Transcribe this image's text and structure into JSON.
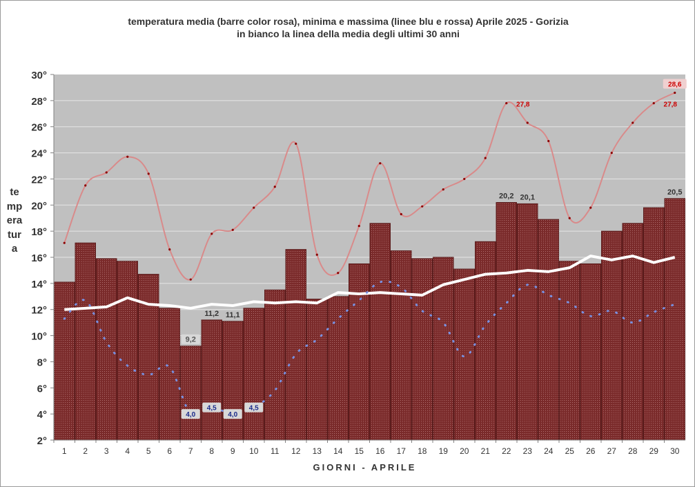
{
  "title_line1": "temperatura media (barre color rosa), minima e massima (linee blu e rossa) Aprile 2025 - Gorizia",
  "title_line2": "in bianco la linea della media degli ultimi 30 anni",
  "ylabel": "temperatura",
  "xlabel": "GIORNI - APRILE",
  "colors": {
    "plot_bg": "#c0c0c0",
    "bar": "#7a2a2a",
    "max_line": "#d98a8a",
    "min_line": "#7890e0",
    "avg30_line": "#ffffff"
  },
  "chart_data": {
    "type": "bar",
    "ylim": [
      2,
      30
    ],
    "yticks": [
      "2°",
      "4°",
      "6°",
      "8°",
      "10°",
      "12°",
      "14°",
      "16°",
      "18°",
      "20°",
      "22°",
      "24°",
      "26°",
      "28°",
      "30°"
    ],
    "grid": true,
    "categories": [
      "1",
      "2",
      "3",
      "4",
      "5",
      "6",
      "7",
      "8",
      "9",
      "10",
      "11",
      "12",
      "13",
      "14",
      "15",
      "16",
      "17",
      "18",
      "19",
      "20",
      "21",
      "22",
      "23",
      "24",
      "25",
      "26",
      "27",
      "28",
      "29",
      "30"
    ],
    "series": [
      {
        "name": "temperatura media",
        "kind": "bar",
        "values": [
          14.1,
          17.1,
          15.9,
          15.7,
          14.7,
          12.1,
          9.2,
          11.2,
          11.1,
          12.1,
          13.5,
          16.6,
          12.8,
          13.0,
          15.5,
          18.6,
          16.5,
          15.9,
          16.0,
          15.1,
          17.2,
          20.2,
          20.1,
          18.9,
          15.7,
          15.5,
          18.0,
          18.6,
          19.8,
          20.5
        ]
      },
      {
        "name": "massima",
        "kind": "line",
        "values": [
          17.1,
          21.5,
          22.5,
          23.7,
          22.4,
          16.6,
          14.3,
          17.8,
          18.1,
          19.8,
          21.4,
          24.7,
          16.2,
          14.8,
          18.4,
          23.2,
          19.3,
          19.9,
          21.2,
          22.0,
          23.6,
          27.8,
          26.3,
          24.9,
          19.0,
          19.8,
          24.0,
          26.3,
          27.8,
          28.6
        ]
      },
      {
        "name": "minima",
        "kind": "line",
        "values": [
          11.3,
          12.7,
          9.5,
          7.7,
          7.0,
          7.6,
          4.0,
          4.5,
          4.0,
          4.5,
          5.8,
          8.6,
          9.7,
          11.3,
          12.7,
          14.1,
          13.7,
          11.9,
          11.0,
          8.4,
          10.8,
          12.5,
          13.9,
          13.1,
          12.5,
          11.5,
          11.9,
          11.0,
          11.8,
          12.4
        ]
      },
      {
        "name": "media degli ultimi 30 anni",
        "kind": "line",
        "values": [
          12.0,
          12.1,
          12.2,
          12.9,
          12.4,
          12.3,
          12.1,
          12.4,
          12.3,
          12.6,
          12.5,
          12.6,
          12.5,
          13.3,
          13.2,
          13.3,
          13.2,
          13.1,
          13.9,
          14.3,
          14.7,
          14.8,
          15.0,
          14.9,
          15.2,
          16.1,
          15.8,
          16.1,
          15.6,
          16.0
        ]
      }
    ],
    "data_labels": [
      {
        "series": "temperatura media",
        "day": 7,
        "text": "9,2"
      },
      {
        "series": "temperatura media",
        "day": 8,
        "text": "11,2"
      },
      {
        "series": "temperatura media",
        "day": 9,
        "text": "11,1"
      },
      {
        "series": "temperatura media",
        "day": 22,
        "text": "20,2"
      },
      {
        "series": "temperatura media",
        "day": 23,
        "text": "20,1"
      },
      {
        "series": "temperatura media",
        "day": 30,
        "text": "20,5"
      },
      {
        "series": "massima",
        "day": 22,
        "text": "27,8"
      },
      {
        "series": "massima",
        "day": 29,
        "text": "27,8"
      },
      {
        "series": "massima",
        "day": 30,
        "text": "28,6"
      },
      {
        "series": "minima",
        "day": 7,
        "text": "4,0"
      },
      {
        "series": "minima",
        "day": 8,
        "text": "4,5"
      },
      {
        "series": "minima",
        "day": 9,
        "text": "4,0"
      },
      {
        "series": "minima",
        "day": 10,
        "text": "4,5"
      }
    ]
  }
}
